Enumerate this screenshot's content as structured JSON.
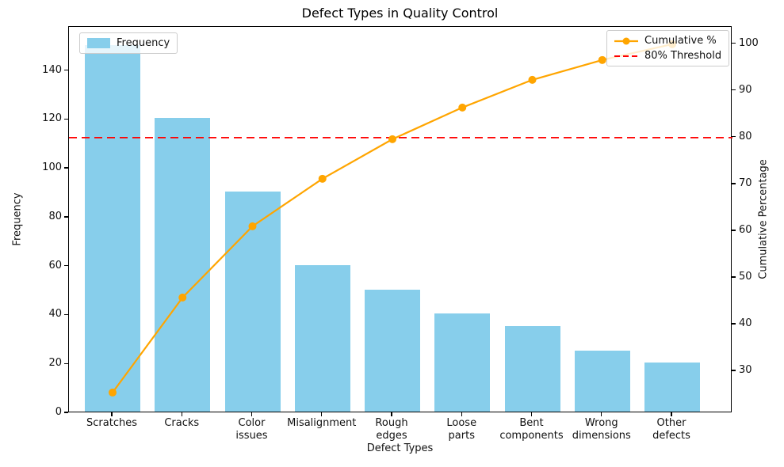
{
  "chart_data": {
    "type": "bar",
    "subtype": "pareto",
    "title": "Defect Types in Quality Control",
    "xlabel": "Defect Types",
    "ylabel_left": "Frequency",
    "ylabel_right": "Cumulative Percentage",
    "categories": [
      "Scratches",
      "Cracks",
      "Color\nissues",
      "Misalignment",
      "Rough\nedges",
      "Loose\nparts",
      "Bent\ncomponents",
      "Wrong\ndimensions",
      "Other\ndefects"
    ],
    "series": [
      {
        "name": "Frequency",
        "type": "bar",
        "axis": "left",
        "color": "#87CEEB",
        "values": [
          150,
          120,
          90,
          60,
          50,
          40,
          35,
          25,
          20
        ]
      },
      {
        "name": "Cumulative %",
        "type": "line",
        "axis": "right",
        "color": "#FFA500",
        "values": [
          25.42,
          45.76,
          61.02,
          71.19,
          79.66,
          86.44,
          92.37,
          96.61,
          100.0
        ]
      }
    ],
    "threshold": {
      "label": "80% Threshold",
      "value": 80,
      "color": "#FF0000",
      "style": "dashed"
    },
    "axes": {
      "left": {
        "ticks": [
          0,
          20,
          40,
          60,
          80,
          100,
          120,
          140
        ],
        "range": [
          0,
          158
        ]
      },
      "right": {
        "ticks": [
          30,
          40,
          50,
          60,
          70,
          80,
          90,
          100
        ],
        "range": [
          21,
          103.7
        ]
      }
    },
    "grid": false,
    "legend": {
      "frequency": "Frequency",
      "cumulative": "Cumulative %",
      "threshold": "80% Threshold",
      "frequency_position": "upper left",
      "cumulative_position": "upper right"
    }
  }
}
